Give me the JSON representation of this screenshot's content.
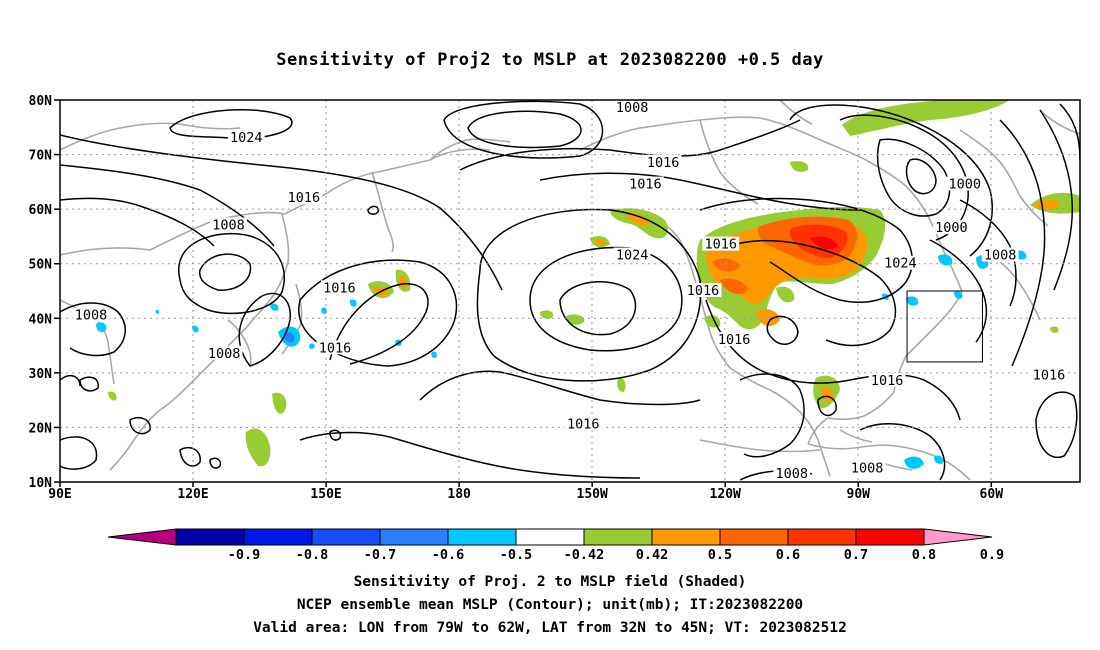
{
  "title": "Sensitivity of Proj2 to MSLP at 2023082200 +0.5 day",
  "axes": {
    "lat_ticks": [
      "80N",
      "70N",
      "60N",
      "50N",
      "40N",
      "30N",
      "20N",
      "10N"
    ],
    "lon_ticks": [
      "90E",
      "120E",
      "150E",
      "180",
      "150W",
      "120W",
      "90W",
      "60W"
    ],
    "lat_range": [
      10,
      80
    ],
    "lon_range_east": [
      90,
      320
    ],
    "grid": "dotted"
  },
  "colorbar": {
    "labels": [
      "-0.9",
      "-0.8",
      "-0.7",
      "-0.6",
      "-0.5",
      "-0.42",
      "0.42",
      "0.5",
      "0.6",
      "0.7",
      "0.8",
      "0.9"
    ],
    "colors": [
      "#b4007e",
      "#0000a8",
      "#0018e6",
      "#1a4cff",
      "#2a7fff",
      "#00c8ff",
      "#ffffff",
      "#99cc33",
      "#ff9900",
      "#ff6600",
      "#ff3300",
      "#ff0000",
      "#ff99cc"
    ]
  },
  "contour_labels": [
    {
      "text": "1008",
      "lon": 219,
      "lat": 78.5
    },
    {
      "text": "1024",
      "lon": 132,
      "lat": 73
    },
    {
      "text": "1016",
      "lon": 226,
      "lat": 68.5
    },
    {
      "text": "1016",
      "lon": 222,
      "lat": 64.5
    },
    {
      "text": "1016",
      "lon": 145,
      "lat": 62
    },
    {
      "text": "1008",
      "lon": 128,
      "lat": 57
    },
    {
      "text": "1000",
      "lon": 294,
      "lat": 64.5
    },
    {
      "text": "1000",
      "lon": 291,
      "lat": 56.5
    },
    {
      "text": "1008",
      "lon": 302,
      "lat": 51.5
    },
    {
      "text": "1016",
      "lon": 239,
      "lat": 53.5
    },
    {
      "text": "1024",
      "lon": 219,
      "lat": 51.5
    },
    {
      "text": "1024",
      "lon": 279.5,
      "lat": 50
    },
    {
      "text": "1016",
      "lon": 153,
      "lat": 45.5
    },
    {
      "text": "1016",
      "lon": 235,
      "lat": 45
    },
    {
      "text": "1008",
      "lon": 97,
      "lat": 40.5
    },
    {
      "text": "1016",
      "lon": 152,
      "lat": 34.5
    },
    {
      "text": "1008",
      "lon": 127,
      "lat": 33.5
    },
    {
      "text": "1016",
      "lon": 242,
      "lat": 36
    },
    {
      "text": "1016",
      "lon": 276.5,
      "lat": 28.5
    },
    {
      "text": "1016",
      "lon": 208,
      "lat": 20.5
    },
    {
      "text": "1016",
      "lon": 313,
      "lat": 29.5
    },
    {
      "text": "1008",
      "lon": 255,
      "lat": 11.5
    },
    {
      "text": "1008",
      "lon": 272,
      "lat": 12.5
    }
  ],
  "valid_area": {
    "lon_w": [
      79,
      62
    ],
    "lat_n": [
      32,
      45
    ]
  },
  "captions": [
    "Sensitivity of Proj. 2 to MSLP field (Shaded)",
    "NCEP ensemble mean MSLP (Contour); unit(mb); IT:2023082200",
    "Valid area: LON from 79W to 62W, LAT from 32N to 45N; VT: 2023082512"
  ]
}
